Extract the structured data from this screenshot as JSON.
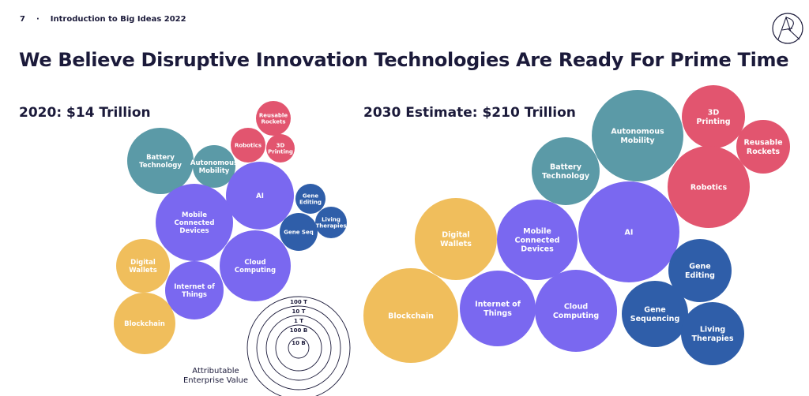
{
  "header": {
    "page_number": "7",
    "separator": "·",
    "section": "Introduction to Big Ideas 2022"
  },
  "title": "We Believe Disruptive Innovation Technologies Are Ready For Prime Time",
  "logo": {
    "text": "AR"
  },
  "colors": {
    "teal": "#5b9aa7",
    "pink": "#e2556f",
    "purple": "#7a68f0",
    "blue": "#2f5ea9",
    "yellow": "#f0be5c"
  },
  "chart_data": [
    {
      "type": "bubble",
      "title": "2020: $14 Trillion",
      "bubbles": [
        {
          "label": "Battery Technology",
          "lines": [
            "Battery",
            "Technology"
          ],
          "color": "teal"
        },
        {
          "label": "Autonomous Mobility",
          "lines": [
            "Autonomous",
            "Mobility"
          ],
          "color": "teal"
        },
        {
          "label": "Robotics",
          "lines": [
            "Robotics"
          ],
          "color": "pink"
        },
        {
          "label": "Reusable Rockets",
          "lines": [
            "Reusable",
            "Rockets"
          ],
          "color": "pink"
        },
        {
          "label": "3D Printing",
          "lines": [
            "3D",
            "Printing"
          ],
          "color": "pink"
        },
        {
          "label": "AI",
          "lines": [
            "AI"
          ],
          "color": "purple"
        },
        {
          "label": "Mobile Connected Devices",
          "lines": [
            "Mobile",
            "Connected",
            "Devices"
          ],
          "color": "purple"
        },
        {
          "label": "Gene Editing",
          "lines": [
            "Gene",
            "Editing"
          ],
          "color": "blue"
        },
        {
          "label": "Living Therapies",
          "lines": [
            "Living",
            "Therapies"
          ],
          "color": "blue"
        },
        {
          "label": "Gene Seq",
          "lines": [
            "Gene Seq"
          ],
          "color": "blue"
        },
        {
          "label": "Cloud Computing",
          "lines": [
            "Cloud",
            "Computing"
          ],
          "color": "purple"
        },
        {
          "label": "Digital Wallets",
          "lines": [
            "Digital",
            "Wallets"
          ],
          "color": "yellow"
        },
        {
          "label": "Internet of Things",
          "lines": [
            "Internet of",
            "Things"
          ],
          "color": "purple"
        },
        {
          "label": "Blockchain",
          "lines": [
            "Blockchain"
          ],
          "color": "yellow"
        }
      ]
    },
    {
      "type": "bubble",
      "title": "2030 Estimate: $210 Trillion",
      "bubbles": [
        {
          "label": "Blockchain",
          "lines": [
            "Blockchain"
          ],
          "color": "yellow"
        },
        {
          "label": "Digital Wallets",
          "lines": [
            "Digital",
            "Wallets"
          ],
          "color": "yellow"
        },
        {
          "label": "Mobile Connected Devices",
          "lines": [
            "Mobile",
            "Connected",
            "Devices"
          ],
          "color": "purple"
        },
        {
          "label": "Internet of Things",
          "lines": [
            "Internet of",
            "Things"
          ],
          "color": "purple"
        },
        {
          "label": "Cloud Computing",
          "lines": [
            "Cloud",
            "Computing"
          ],
          "color": "purple"
        },
        {
          "label": "AI",
          "lines": [
            "AI"
          ],
          "color": "purple"
        },
        {
          "label": "Battery Technology",
          "lines": [
            "Battery",
            "Technology"
          ],
          "color": "teal"
        },
        {
          "label": "Autonomous Mobility",
          "lines": [
            "Autonomous",
            "Mobility"
          ],
          "color": "teal"
        },
        {
          "label": "3D Printing",
          "lines": [
            "3D",
            "Printing"
          ],
          "color": "pink"
        },
        {
          "label": "Reusable Rockets",
          "lines": [
            "Reusable",
            "Rockets"
          ],
          "color": "pink"
        },
        {
          "label": "Robotics",
          "lines": [
            "Robotics"
          ],
          "color": "pink"
        },
        {
          "label": "Gene Editing",
          "lines": [
            "Gene",
            "Editing"
          ],
          "color": "blue"
        },
        {
          "label": "Gene Sequencing",
          "lines": [
            "Gene",
            "Sequencing"
          ],
          "color": "blue"
        },
        {
          "label": "Living Therapies",
          "lines": [
            "Living",
            "Therapies"
          ],
          "color": "blue"
        }
      ]
    }
  ],
  "legend": {
    "rings": [
      "100 T",
      "10 T",
      "1 T",
      "100 B",
      "10 B"
    ],
    "label_line1": "Attributable",
    "label_line2": "Enterprise Value"
  }
}
